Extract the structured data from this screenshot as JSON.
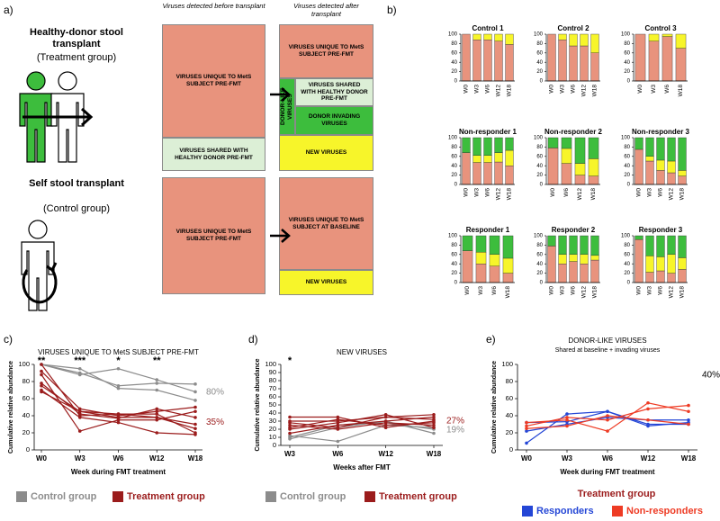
{
  "panel_labels": [
    "a)",
    "b)",
    "c)",
    "d)",
    "e)"
  ],
  "diagram": {
    "headers": [
      "Viruses detected before transplant",
      "Viruses detected after transplant"
    ],
    "treatment": {
      "title": "Healthy-donor stool transplant",
      "group": "(Treatment group)",
      "before": [
        "VIRUSES UNIQUE TO MetS SUBJECT PRE-FMT",
        "VIRUSES SHARED WITH HEALTHY DONOR PRE-FMT"
      ],
      "after": {
        "unique": "VIRUSES UNIQUE TO MetS SUBJECT PRE-FMT",
        "donor_like": "DONOR-LIKE VIRUSES",
        "shared": "VIRUSES SHARED WITH HEALTHY DONOR PRE-FMT",
        "invading": "DONOR INVADING VIRUSES",
        "new": "NEW VIRUSES"
      }
    },
    "control": {
      "title": "Self stool transplant",
      "group": "(Control group)",
      "before": "VIRUSES UNIQUE TO MetS SUBJECT PRE-FMT",
      "after": [
        "VIRUSES UNIQUE TO MetS SUBJECT AT BASELINE",
        "NEW VIRUSES"
      ]
    }
  },
  "chart_data": [
    {
      "type": "stacked_bar",
      "title": "Control 1",
      "categories": [
        "W0",
        "W3",
        "W6",
        "W12",
        "W18"
      ],
      "series": [
        {
          "color": "#e8937d",
          "values": [
            100,
            88,
            88,
            85,
            78
          ]
        },
        {
          "color": "#f7f52a",
          "values": [
            0,
            12,
            12,
            15,
            22
          ]
        },
        {
          "color": "#3dbd3d",
          "values": [
            0,
            0,
            0,
            0,
            0
          ]
        }
      ],
      "ylim": [
        0,
        100
      ],
      "yticks": [
        0,
        20,
        40,
        60,
        80,
        100
      ]
    },
    {
      "type": "stacked_bar",
      "title": "Control 2",
      "categories": [
        "W0",
        "W3",
        "W6",
        "W12",
        "W18"
      ],
      "series": [
        {
          "color": "#e8937d",
          "values": [
            100,
            88,
            75,
            75,
            60
          ]
        },
        {
          "color": "#f7f52a",
          "values": [
            0,
            12,
            25,
            25,
            40
          ]
        },
        {
          "color": "#3dbd3d",
          "values": [
            0,
            0,
            0,
            0,
            0
          ]
        }
      ],
      "ylim": [
        0,
        100
      ],
      "yticks": [
        0,
        20,
        40,
        60,
        80,
        100
      ]
    },
    {
      "type": "stacked_bar",
      "title": "Control 3",
      "categories": [
        "W0",
        "W3",
        "W6",
        "W18"
      ],
      "series": [
        {
          "color": "#e8937d",
          "values": [
            100,
            85,
            95,
            70
          ]
        },
        {
          "color": "#f7f52a",
          "values": [
            0,
            15,
            5,
            30
          ]
        },
        {
          "color": "#3dbd3d",
          "values": [
            0,
            0,
            0,
            0
          ]
        }
      ],
      "ylim": [
        0,
        100
      ],
      "yticks": [
        0,
        20,
        40,
        60,
        80,
        100
      ]
    },
    {
      "type": "stacked_bar",
      "title": "Non-responder 1",
      "categories": [
        "W0",
        "W3",
        "W6",
        "W12",
        "W18"
      ],
      "series": [
        {
          "color": "#e8937d",
          "values": [
            68,
            47,
            47,
            48,
            40
          ]
        },
        {
          "color": "#f7f52a",
          "values": [
            0,
            15,
            15,
            20,
            33
          ]
        },
        {
          "color": "#3dbd3d",
          "values": [
            32,
            38,
            38,
            32,
            27
          ]
        }
      ],
      "ylim": [
        0,
        100
      ],
      "yticks": [
        0,
        20,
        40,
        60,
        80,
        100
      ]
    },
    {
      "type": "stacked_bar",
      "title": "Non-responder 2",
      "categories": [
        "W0",
        "W6",
        "W12",
        "W18"
      ],
      "series": [
        {
          "color": "#e8937d",
          "values": [
            78,
            45,
            20,
            18
          ]
        },
        {
          "color": "#f7f52a",
          "values": [
            0,
            32,
            25,
            37
          ]
        },
        {
          "color": "#3dbd3d",
          "values": [
            22,
            23,
            55,
            45
          ]
        }
      ],
      "ylim": [
        0,
        100
      ],
      "yticks": [
        0,
        20,
        40,
        60,
        80,
        100
      ]
    },
    {
      "type": "stacked_bar",
      "title": "Non-responder 3",
      "categories": [
        "W0",
        "W3",
        "W6",
        "W12",
        "W18"
      ],
      "series": [
        {
          "color": "#e8937d",
          "values": [
            75,
            50,
            30,
            25,
            18
          ]
        },
        {
          "color": "#f7f52a",
          "values": [
            0,
            10,
            22,
            25,
            12
          ]
        },
        {
          "color": "#3dbd3d",
          "values": [
            25,
            40,
            48,
            50,
            70
          ]
        }
      ],
      "ylim": [
        0,
        100
      ],
      "yticks": [
        0,
        20,
        40,
        60,
        80,
        100
      ]
    },
    {
      "type": "stacked_bar",
      "title": "Responder 1",
      "categories": [
        "W0",
        "W3",
        "W6",
        "W18"
      ],
      "series": [
        {
          "color": "#e8937d",
          "values": [
            68,
            40,
            35,
            20
          ]
        },
        {
          "color": "#f7f52a",
          "values": [
            0,
            25,
            25,
            32
          ]
        },
        {
          "color": "#3dbd3d",
          "values": [
            32,
            35,
            40,
            48
          ]
        }
      ],
      "ylim": [
        0,
        100
      ],
      "yticks": [
        0,
        20,
        40,
        60,
        80,
        100
      ]
    },
    {
      "type": "stacked_bar",
      "title": "Responder 2",
      "categories": [
        "W0",
        "W3",
        "W6",
        "W12",
        "W18"
      ],
      "series": [
        {
          "color": "#e8937d",
          "values": [
            78,
            40,
            45,
            40,
            48
          ]
        },
        {
          "color": "#f7f52a",
          "values": [
            0,
            20,
            15,
            20,
            10
          ]
        },
        {
          "color": "#3dbd3d",
          "values": [
            22,
            40,
            40,
            40,
            42
          ]
        }
      ],
      "ylim": [
        0,
        100
      ],
      "yticks": [
        0,
        20,
        40,
        60,
        80,
        100
      ]
    },
    {
      "type": "stacked_bar",
      "title": "Responder 3",
      "categories": [
        "W0",
        "W3",
        "W6",
        "W12",
        "W18"
      ],
      "series": [
        {
          "color": "#e8937d",
          "values": [
            92,
            22,
            25,
            20,
            28
          ]
        },
        {
          "color": "#f7f52a",
          "values": [
            0,
            35,
            30,
            40,
            25
          ]
        },
        {
          "color": "#3dbd3d",
          "values": [
            8,
            43,
            45,
            40,
            47
          ]
        }
      ],
      "ylim": [
        0,
        100
      ],
      "yticks": [
        0,
        20,
        40,
        60,
        80,
        100
      ]
    },
    {
      "type": "line",
      "title": "VIRUSES UNIQUE TO MetS SUBJECT PRE-FMT",
      "ylabel": "Cumulative relative abundance",
      "xlabel": "Week during FMT treatment",
      "categories": [
        "W0",
        "W3",
        "W6",
        "W12",
        "W18"
      ],
      "significance": [
        "**",
        "***",
        "*",
        "**",
        null
      ],
      "series": [
        {
          "name": "Control group",
          "color": "#8c8c8c",
          "note": "80%",
          "values": [
            [
              100,
              90,
              75,
              78,
              77
            ],
            [
              100,
              88,
              95,
              82,
              68
            ],
            [
              100,
              95,
              72,
              70,
              58
            ]
          ]
        },
        {
          "name": "Treatment group",
          "color": "#9b1c1c",
          "note": "35%",
          "values": [
            [
              92,
              48,
              40,
              45,
              50
            ],
            [
              78,
              42,
              37,
              48,
              38
            ],
            [
              75,
              45,
              42,
              38,
              25
            ],
            [
              70,
              38,
              32,
              20,
              18
            ],
            [
              88,
              22,
              35,
              35,
              45
            ],
            [
              100,
              40,
              42,
              42,
              20
            ],
            [
              68,
              45,
              38,
              38,
              30
            ]
          ]
        }
      ],
      "ylim": [
        0,
        100
      ],
      "yticks": [
        0,
        20,
        40,
        60,
        80,
        100
      ]
    },
    {
      "type": "line",
      "title": "NEW VIRUSES",
      "ylabel": "Cumulative relative abundance",
      "xlabel": "Weeks after FMT",
      "categories": [
        "W3",
        "W6",
        "W12",
        "W18"
      ],
      "significance": [
        "*",
        null,
        null,
        null
      ],
      "series": [
        {
          "name": "Control group",
          "color": "#8c8c8c",
          "note": "19%",
          "values": [
            [
              12,
              5,
              25,
              22
            ],
            [
              10,
              25,
              28,
              20
            ],
            [
              8,
              22,
              30,
              15
            ]
          ]
        },
        {
          "name": "Treatment group",
          "color": "#9b1c1c",
          "note": "27%",
          "values": [
            [
              30,
              30,
              35,
              38
            ],
            [
              25,
              20,
              28,
              25
            ],
            [
              35,
              35,
              22,
              30
            ],
            [
              20,
              28,
              38,
              22
            ],
            [
              15,
              25,
              30,
              35
            ],
            [
              22,
              32,
              25,
              28
            ],
            [
              28,
              22,
              35,
              32
            ]
          ]
        }
      ],
      "ylim": [
        0,
        100
      ],
      "yticks": [
        0,
        10,
        20,
        30,
        40,
        50,
        60,
        70,
        80,
        90,
        100
      ]
    },
    {
      "type": "line",
      "title": "DONOR-LIKE VIRUSES",
      "subtitle": "Shared at baseline + invading viruses",
      "ylabel": "Cumulative relative abundance",
      "xlabel": "Week during FMT treatment",
      "categories": [
        "W0",
        "W3",
        "W6",
        "W12",
        "W18"
      ],
      "note": "40%",
      "legend_title": "Treatment group",
      "series": [
        {
          "name": "Responders",
          "color": "#2446d6",
          "values": [
            [
              8,
              42,
              45,
              28,
              32
            ],
            [
              22,
              30,
              38,
              35,
              35
            ],
            [
              32,
              33,
              45,
              30,
              30
            ]
          ]
        },
        {
          "name": "Non-responders",
          "color": "#ee3b24",
          "values": [
            [
              32,
              35,
              22,
              55,
              45
            ],
            [
              28,
              38,
              35,
              48,
              52
            ],
            [
              25,
              28,
              40,
              35,
              30
            ]
          ]
        }
      ],
      "ylim": [
        0,
        100
      ],
      "yticks": [
        0,
        20,
        40,
        60,
        80,
        100
      ]
    }
  ]
}
